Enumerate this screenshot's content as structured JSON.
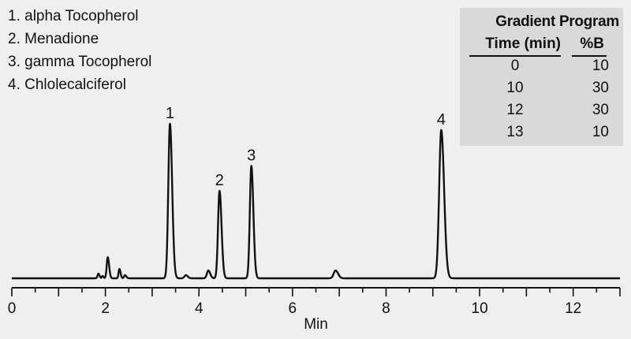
{
  "legend": {
    "items": [
      "1. alpha Tocopherol",
      "2. Menadione",
      "3. gamma Tocopherol",
      "4. Chlolecalciferol"
    ]
  },
  "gradient_program": {
    "title": "Gradient Program",
    "headers": [
      "Time (min)",
      "%B"
    ],
    "rows": [
      [
        "0",
        "10"
      ],
      [
        "10",
        "30"
      ],
      [
        "12",
        "30"
      ],
      [
        "13",
        "10"
      ]
    ]
  },
  "chart_data": {
    "type": "line",
    "xlabel": "Min",
    "ylabel": "",
    "xlim": [
      0,
      13
    ],
    "ylim": [
      0,
      1
    ],
    "x_ticks": [
      0,
      2,
      4,
      6,
      8,
      10,
      12
    ],
    "y_axis_visible": false,
    "baseline": 0.01,
    "series": [
      {
        "peaks": [
          {
            "label": "",
            "rt": 1.85,
            "height": 0.03,
            "width": 0.018
          },
          {
            "label": "",
            "rt": 1.94,
            "height": 0.015,
            "width": 0.015
          },
          {
            "label": "",
            "rt": 2.05,
            "height": 0.135,
            "width": 0.022
          },
          {
            "label": "",
            "rt": 2.3,
            "height": 0.06,
            "width": 0.018
          },
          {
            "label": "",
            "rt": 2.42,
            "height": 0.02,
            "width": 0.02
          },
          {
            "label": "1",
            "rt": 3.38,
            "height": 0.99,
            "width": 0.035
          },
          {
            "label": "",
            "rt": 3.72,
            "height": 0.02,
            "width": 0.03
          },
          {
            "label": "",
            "rt": 4.2,
            "height": 0.05,
            "width": 0.03
          },
          {
            "label": "2",
            "rt": 4.44,
            "height": 0.56,
            "width": 0.032
          },
          {
            "label": "3",
            "rt": 5.12,
            "height": 0.72,
            "width": 0.032
          },
          {
            "label": "",
            "rt": 6.92,
            "height": 0.05,
            "width": 0.04
          },
          {
            "label": "4",
            "rt": 9.18,
            "height": 0.95,
            "width": 0.045
          }
        ]
      }
    ]
  }
}
